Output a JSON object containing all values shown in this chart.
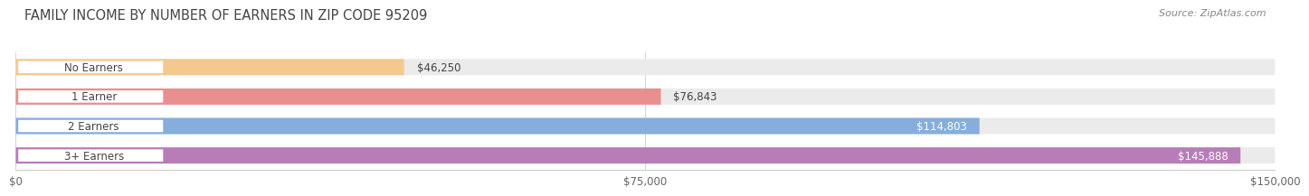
{
  "title": "FAMILY INCOME BY NUMBER OF EARNERS IN ZIP CODE 95209",
  "source": "Source: ZipAtlas.com",
  "categories": [
    "No Earners",
    "1 Earner",
    "2 Earners",
    "3+ Earners"
  ],
  "values": [
    46250,
    76843,
    114803,
    145888
  ],
  "bar_colors": [
    "#f5c98e",
    "#e89090",
    "#85aedd",
    "#b87db8"
  ],
  "max_value": 150000,
  "xticks": [
    0,
    75000,
    150000
  ],
  "xtick_labels": [
    "$0",
    "$75,000",
    "$150,000"
  ],
  "value_labels": [
    "$46,250",
    "$76,843",
    "$114,803",
    "$145,888"
  ],
  "bg_color": "#ffffff",
  "bar_bg_color": "#ebebeb",
  "label_pill_color": "#ffffff",
  "title_fontsize": 10.5,
  "source_fontsize": 8,
  "label_fontsize": 8.5,
  "value_fontsize": 8.5,
  "tick_fontsize": 8.5
}
